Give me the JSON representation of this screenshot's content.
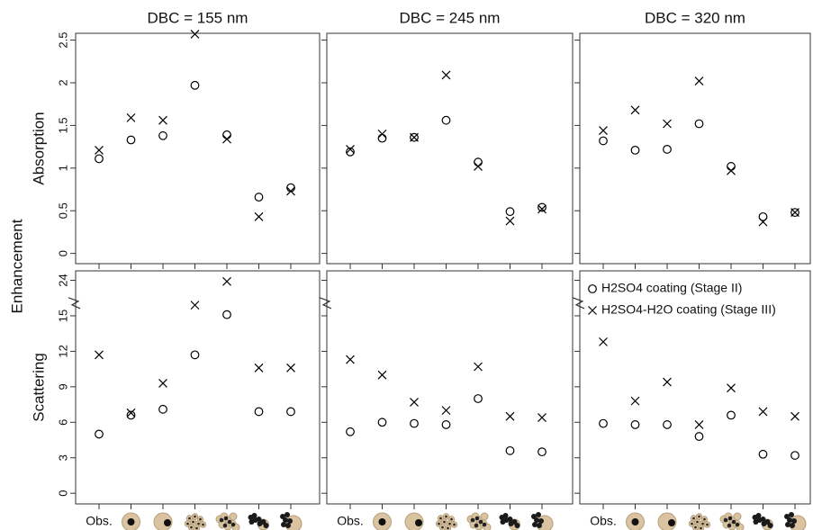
{
  "ylabel": "Enhancement",
  "chart_data": [
    {
      "type": "scatter",
      "title": "DBC = 155 nm",
      "ylabel": "Absorption",
      "categories": [
        null,
        null,
        null,
        null,
        null,
        null,
        null
      ],
      "ylim": [
        -0.12,
        2.58
      ],
      "yticks": [
        0,
        0.5,
        1,
        1.5,
        2,
        2.5
      ],
      "show_ytick_labels": true,
      "series": [
        {
          "marker": "circle",
          "color": "#000000",
          "values": [
            1.11,
            1.33,
            1.38,
            1.97,
            1.39,
            0.66,
            0.77
          ]
        },
        {
          "marker": "x",
          "color": "#000000",
          "values": [
            1.21,
            1.59,
            1.56,
            2.57,
            1.34,
            0.43,
            0.73
          ]
        }
      ]
    },
    {
      "type": "scatter",
      "title": "DBC = 245 nm",
      "categories": [
        null,
        null,
        null,
        null,
        null,
        null,
        null
      ],
      "ylim": [
        -0.12,
        2.58
      ],
      "yticks": [
        0,
        0.5,
        1,
        1.5,
        2,
        2.5
      ],
      "show_ytick_labels": false,
      "series": [
        {
          "marker": "circle",
          "color": "#000000",
          "values": [
            1.19,
            1.35,
            1.36,
            1.56,
            1.07,
            0.49,
            0.54
          ]
        },
        {
          "marker": "x",
          "color": "#000000",
          "values": [
            1.22,
            1.4,
            1.36,
            2.09,
            1.02,
            0.38,
            0.52
          ]
        }
      ]
    },
    {
      "type": "scatter",
      "title": "DBC = 320 nm",
      "categories": [
        null,
        null,
        null,
        null,
        null,
        null,
        null
      ],
      "ylim": [
        -0.12,
        2.58
      ],
      "yticks": [
        0,
        0.5,
        1,
        1.5,
        2,
        2.5
      ],
      "show_ytick_labels": false,
      "series": [
        {
          "marker": "circle",
          "color": "#000000",
          "values": [
            1.32,
            1.21,
            1.22,
            1.52,
            1.02,
            0.43,
            0.48
          ]
        },
        {
          "marker": "x",
          "color": "#000000",
          "values": [
            1.44,
            1.68,
            1.52,
            2.02,
            0.97,
            0.37,
            0.48
          ]
        }
      ]
    },
    {
      "type": "scatter",
      "ylabel": "Scattering",
      "categories": [
        "Obs.",
        null,
        null,
        null,
        null,
        null,
        null
      ],
      "ylim": [
        -0.9,
        24.8
      ],
      "ybreak": [
        16,
        22
      ],
      "yticks": [
        0,
        3,
        6,
        9,
        12,
        15,
        24
      ],
      "show_ytick_labels": true,
      "series": [
        {
          "marker": "circle",
          "color": "#000000",
          "values": [
            5.0,
            6.6,
            7.1,
            11.7,
            15.1,
            6.9,
            6.9
          ]
        },
        {
          "marker": "x",
          "color": "#000000",
          "values": [
            11.7,
            6.8,
            9.3,
            15.9,
            23.9,
            10.6,
            10.6
          ]
        }
      ]
    },
    {
      "type": "scatter",
      "categories": [
        "Obs.",
        null,
        null,
        null,
        null,
        null,
        null
      ],
      "ylim": [
        -0.9,
        24.8
      ],
      "ybreak": [
        16,
        22
      ],
      "yticks": [
        0,
        3,
        6,
        9,
        12,
        15,
        24
      ],
      "show_ytick_labels": false,
      "series": [
        {
          "marker": "circle",
          "color": "#000000",
          "values": [
            5.2,
            6.0,
            5.9,
            5.8,
            8.0,
            3.6,
            3.5
          ]
        },
        {
          "marker": "x",
          "color": "#000000",
          "values": [
            11.3,
            10.0,
            7.7,
            7.0,
            10.7,
            6.5,
            6.4
          ]
        }
      ]
    },
    {
      "type": "scatter",
      "categories": [
        "Obs.",
        null,
        null,
        null,
        null,
        null,
        null
      ],
      "ylim": [
        -0.9,
        24.8
      ],
      "ybreak": [
        16,
        22
      ],
      "yticks": [
        0,
        3,
        6,
        9,
        12,
        15,
        24
      ],
      "show_ytick_labels": false,
      "legend": "upper left",
      "series": [
        {
          "name": "H2SO4 coating (Stage II)",
          "marker": "circle",
          "color": "#000000",
          "values": [
            5.9,
            5.8,
            5.8,
            4.8,
            6.6,
            3.3,
            3.2
          ]
        },
        {
          "name": "H2SO4-H2O coating (Stage III)",
          "marker": "x",
          "color": "#000000",
          "values": [
            12.8,
            7.8,
            9.4,
            5.8,
            8.9,
            6.9,
            6.5
          ]
        }
      ]
    }
  ]
}
